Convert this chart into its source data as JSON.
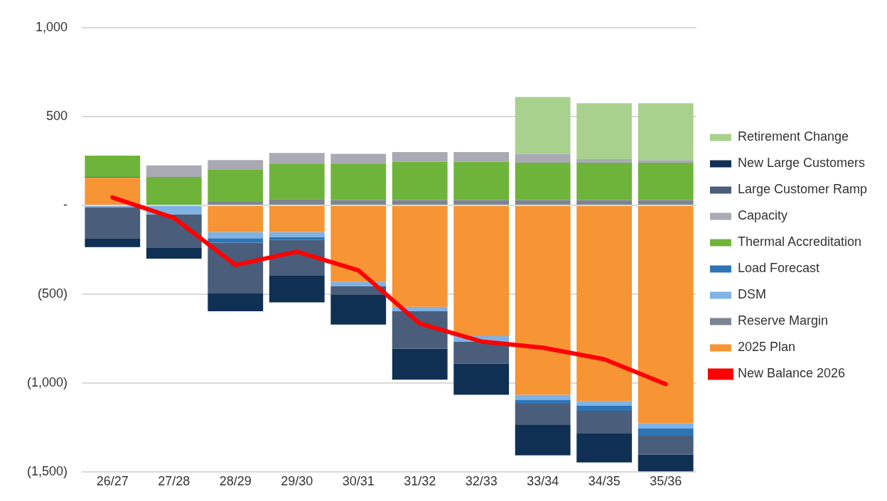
{
  "chart_data": {
    "type": "bar",
    "stacked": true,
    "categories": [
      "26/27",
      "27/28",
      "28/29",
      "29/30",
      "30/31",
      "31/32",
      "32/33",
      "33/34",
      "34/35",
      "35/36"
    ],
    "series": [
      {
        "name": "2025 Plan",
        "color": "#f79433",
        "values": [
          155,
          0,
          -150,
          -150,
          -430,
          -570,
          -735,
          -1065,
          -1100,
          -1225
        ]
      },
      {
        "name": "Reserve Margin",
        "color": "#7c8591",
        "values": [
          0,
          0,
          20,
          35,
          30,
          30,
          30,
          30,
          30,
          30
        ]
      },
      {
        "name": "DSM",
        "color": "#7fb2e5",
        "values": [
          -10,
          -50,
          -35,
          -30,
          -25,
          -25,
          -30,
          -30,
          -25,
          -30
        ]
      },
      {
        "name": "Load Forecast",
        "color": "#2e75b6",
        "values": [
          5,
          0,
          -25,
          -15,
          0,
          0,
          0,
          -20,
          -30,
          -40
        ]
      },
      {
        "name": "Thermal Accreditation",
        "color": "#6fb43a",
        "values": [
          120,
          160,
          180,
          200,
          205,
          215,
          215,
          210,
          210,
          210
        ]
      },
      {
        "name": "Capacity",
        "color": "#a9aab4",
        "values": [
          0,
          65,
          55,
          60,
          55,
          55,
          55,
          50,
          20,
          15
        ]
      },
      {
        "name": "Large Customer Ramp",
        "color": "#4a5d7a",
        "values": [
          -175,
          -190,
          -285,
          -200,
          -45,
          -210,
          -125,
          -120,
          -125,
          -105
        ]
      },
      {
        "name": "New Large Customers",
        "color": "#0f3053",
        "values": [
          -50,
          -60,
          -100,
          -150,
          -170,
          -175,
          -175,
          -170,
          -165,
          -95
        ]
      },
      {
        "name": "Retirement Change",
        "color": "#a9d18e",
        "values": [
          0,
          0,
          0,
          0,
          0,
          0,
          0,
          320,
          315,
          320
        ]
      },
      {
        "name": "New Balance 2026",
        "type": "line",
        "color": "#ff0000",
        "marker": "none",
        "line_style": "solid",
        "values": [
          45,
          -70,
          -335,
          -260,
          -365,
          -665,
          -765,
          -800,
          -865,
          -1005
        ]
      }
    ],
    "ylim": [
      -1500,
      1000
    ],
    "yticks": [
      {
        "value": -1500,
        "label": "(1,500)"
      },
      {
        "value": -1000,
        "label": "(1,000)"
      },
      {
        "value": -500,
        "label": "(500)"
      },
      {
        "value": 0,
        "label": "-"
      },
      {
        "value": 500,
        "label": "500"
      },
      {
        "value": 1000,
        "label": "1,000"
      }
    ],
    "grid": "y",
    "legend": "right"
  }
}
